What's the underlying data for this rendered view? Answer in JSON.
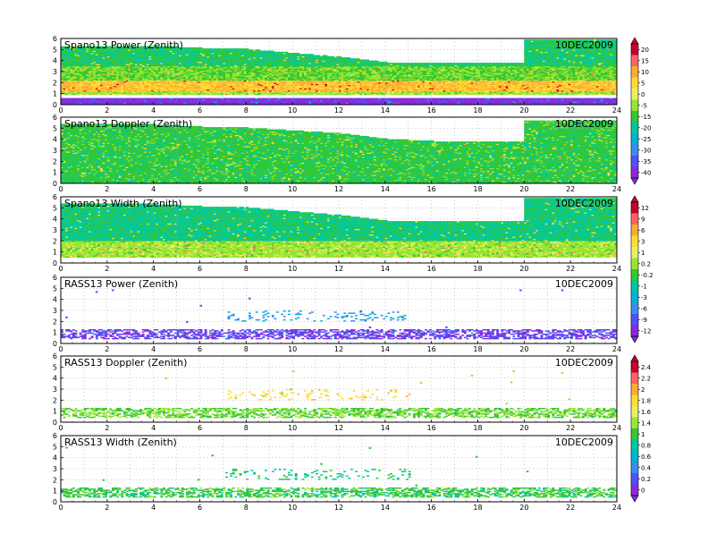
{
  "chart_data": [
    {
      "type": "heatmap",
      "title": "Spano13 Power (Zenith)",
      "date": "10DEC2009",
      "xlim": [
        0,
        24
      ],
      "ylim": [
        0,
        6
      ],
      "xticks": [
        "0",
        "2",
        "4",
        "6",
        "8",
        "10",
        "12",
        "14",
        "16",
        "18",
        "20",
        "22",
        "24"
      ],
      "yticks": [
        "0",
        "1",
        "2",
        "3",
        "4",
        "5",
        "6"
      ],
      "grid": true,
      "colorbar": [
        "20",
        "15",
        "10",
        "5",
        "0",
        "-5",
        "-15",
        "-20",
        "-25",
        "-30",
        "-35",
        "-40"
      ],
      "colorbar_group": "power",
      "style": "profiler",
      "top_height_km": [
        [
          0,
          5.2
        ],
        [
          4,
          5.3
        ],
        [
          6,
          5.1
        ],
        [
          8,
          5.0
        ],
        [
          12,
          4.3
        ],
        [
          14,
          3.8
        ],
        [
          16,
          3.7
        ],
        [
          20,
          3.8
        ],
        [
          20.3,
          5.8
        ],
        [
          24,
          5.8
        ]
      ],
      "pattern": [
        {
          "height_km": [
            0.8,
            1.2
          ],
          "level": 0.55
        },
        {
          "height_km": [
            1.2,
            2.2
          ],
          "level": 0.75
        },
        {
          "height_km": [
            2.2,
            3.5
          ],
          "level": 0.5
        },
        {
          "height_km": [
            3.5,
            6.0
          ],
          "level": 0.42
        },
        {
          "height_km": [
            0.0,
            0.6
          ],
          "level": 0.05
        }
      ]
    },
    {
      "type": "heatmap",
      "title": "Spano13 Doppler (Zenith)",
      "date": "10DEC2009",
      "xlim": [
        0,
        24
      ],
      "ylim": [
        0,
        6
      ],
      "xticks": [
        "0",
        "2",
        "4",
        "6",
        "8",
        "10",
        "12",
        "14",
        "16",
        "18",
        "20",
        "22",
        "24"
      ],
      "yticks": [
        "0",
        "1",
        "2",
        "3",
        "4",
        "5",
        "6"
      ],
      "grid": true,
      "colorbar_group": "power",
      "style": "profiler",
      "top_height_km": [
        [
          0,
          5.3
        ],
        [
          4,
          5.3
        ],
        [
          6,
          5.1
        ],
        [
          8,
          5.0
        ],
        [
          12,
          4.5
        ],
        [
          14,
          4.0
        ],
        [
          16,
          3.8
        ],
        [
          20,
          3.8
        ],
        [
          20.3,
          5.6
        ],
        [
          24,
          5.6
        ]
      ],
      "pattern": [
        {
          "height_km": [
            0.0,
            6.0
          ],
          "level": 0.45
        }
      ]
    },
    {
      "type": "heatmap",
      "title": "Spano13 Width (Zenith)",
      "date": "10DEC2009",
      "xlim": [
        0,
        24
      ],
      "ylim": [
        0,
        6
      ],
      "xticks": [
        "0",
        "2",
        "4",
        "6",
        "8",
        "10",
        "12",
        "14",
        "16",
        "18",
        "20",
        "22",
        "24"
      ],
      "yticks": [
        "0",
        "1",
        "2",
        "3",
        "4",
        "5",
        "6"
      ],
      "grid": true,
      "colorbar": [
        "12",
        "9",
        "6",
        "3",
        "1",
        "0.2",
        "-0.2",
        "-1",
        "-3",
        "-6",
        "-9",
        "-12"
      ],
      "colorbar_group": "rass",
      "style": "profiler",
      "top_height_km": [
        [
          0,
          5.3
        ],
        [
          4,
          5.3
        ],
        [
          6,
          5.1
        ],
        [
          8,
          5.0
        ],
        [
          12,
          4.3
        ],
        [
          14,
          3.8
        ],
        [
          16,
          3.7
        ],
        [
          20,
          3.8
        ],
        [
          20.3,
          5.8
        ],
        [
          24,
          5.8
        ]
      ],
      "pattern": [
        {
          "height_km": [
            0.5,
            2.0
          ],
          "level": 0.55
        },
        {
          "height_km": [
            2.0,
            6.0
          ],
          "level": 0.4
        }
      ]
    },
    {
      "type": "heatmap",
      "title": "RASS13 Power (Zenith)",
      "date": "10DEC2009",
      "xlim": [
        0,
        24
      ],
      "ylim": [
        0,
        6
      ],
      "xticks": [
        "0",
        "2",
        "4",
        "6",
        "8",
        "10",
        "12",
        "14",
        "16",
        "18",
        "20",
        "22",
        "24"
      ],
      "yticks": [
        "0",
        "1",
        "2",
        "3",
        "4",
        "5",
        "6"
      ],
      "grid": true,
      "colorbar_group": "rass",
      "style": "rass",
      "pattern": [
        {
          "height_km": [
            0.4,
            1.3
          ],
          "level": 0.1
        },
        {
          "height_km": [
            2.0,
            3.0
          ],
          "level": 0.25
        }
      ]
    },
    {
      "type": "heatmap",
      "title": "RASS13 Doppler (Zenith)",
      "date": "10DEC2009",
      "xlim": [
        0,
        24
      ],
      "ylim": [
        0,
        6
      ],
      "xticks": [
        "0",
        "2",
        "4",
        "6",
        "8",
        "10",
        "12",
        "14",
        "16",
        "18",
        "20",
        "22",
        "24"
      ],
      "yticks": [
        "0",
        "1",
        "2",
        "3",
        "4",
        "5",
        "6"
      ],
      "grid": true,
      "colorbar": [
        "2.4",
        "2.2",
        "2",
        "1.8",
        "1.6",
        "1.4",
        "1",
        "0.8",
        "0.6",
        "0.4",
        "0.2",
        "0"
      ],
      "colorbar_group": "doppler",
      "style": "rass",
      "pattern": [
        {
          "height_km": [
            0.4,
            1.3
          ],
          "level": 0.5
        },
        {
          "height_km": [
            2.0,
            3.0
          ],
          "level": 0.7
        }
      ]
    },
    {
      "type": "heatmap",
      "title": "RASS13 Width (Zenith)",
      "date": "10DEC2009",
      "xlim": [
        0,
        24
      ],
      "ylim": [
        0,
        6
      ],
      "xticks": [
        "0",
        "2",
        "4",
        "6",
        "8",
        "10",
        "12",
        "14",
        "16",
        "18",
        "20",
        "22",
        "24"
      ],
      "yticks": [
        "0",
        "1",
        "2",
        "3",
        "4",
        "5",
        "6"
      ],
      "grid": true,
      "colorbar_group": "doppler",
      "style": "rass",
      "pattern": [
        {
          "height_km": [
            0.4,
            1.3
          ],
          "level": 0.45
        },
        {
          "height_km": [
            2.0,
            3.0
          ],
          "level": 0.4
        }
      ]
    }
  ],
  "colors": {
    "colorbar": [
      "#c8002d",
      "#ff6464",
      "#ffaa32",
      "#ffdc32",
      "#e6f064",
      "#96e632",
      "#32c832",
      "#00c8a0",
      "#00b4d2",
      "#3c8cf0",
      "#5050ff",
      "#8c28dc"
    ]
  }
}
